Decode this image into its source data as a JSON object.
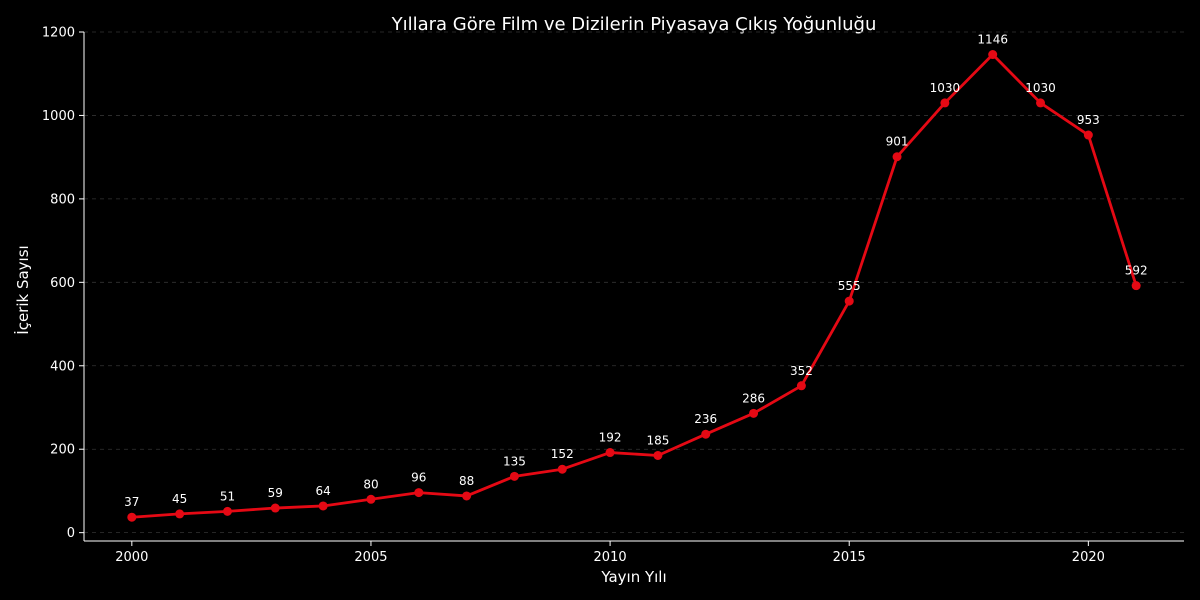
{
  "chart_data": {
    "type": "line",
    "title": "Yıllara Göre Film ve Dizilerin Piyasaya Çıkış Yoğunluğu",
    "xlabel": "Yayın Yılı",
    "ylabel": "İçerik Sayısı",
    "xlim": [
      1999,
      2022
    ],
    "ylim": [
      -20,
      1200
    ],
    "xticks": [
      2000,
      2005,
      2010,
      2015,
      2020
    ],
    "yticks": [
      0,
      200,
      400,
      600,
      800,
      1000,
      1200
    ],
    "grid": "horizontal-dashed",
    "legend": "none",
    "series": [
      {
        "color": "#e50914",
        "x": [
          2000,
          2001,
          2002,
          2003,
          2004,
          2005,
          2006,
          2007,
          2008,
          2009,
          2010,
          2011,
          2012,
          2013,
          2014,
          2015,
          2016,
          2017,
          2018,
          2019,
          2020,
          2021
        ],
        "y": [
          37,
          45,
          51,
          59,
          64,
          80,
          96,
          88,
          135,
          152,
          192,
          185,
          236,
          286,
          352,
          555,
          901,
          1030,
          1146,
          1030,
          953,
          592
        ]
      }
    ]
  }
}
